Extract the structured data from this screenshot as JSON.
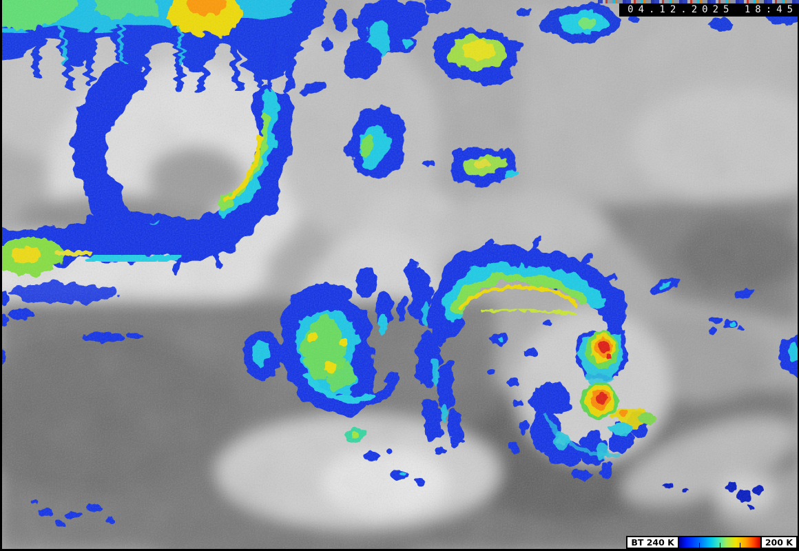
{
  "meta": {
    "description": "Color-enhanced infrared satellite image (brightness temperature enhancement over grayscale IR cloud imagery)"
  },
  "overlay": {
    "timestamp": "04.12.2025 18:45"
  },
  "legend": {
    "bt_min_label": "BT 240 K",
    "bt_max_label": "200 K",
    "gradient_stops": [
      "#000090 0%",
      "#0018ff 9%",
      "#0068ff 24%",
      "#00c4f2 38%",
      "#38e8c0 48%",
      "#a0ee58 58%",
      "#f0e400 70%",
      "#ffa400 82%",
      "#ff4400 92%",
      "#cc0000 100%"
    ],
    "tick_positions_pct": [
      25,
      50,
      75
    ]
  },
  "palette": {
    "enhancement_red": "#dc1400",
    "enhancement_orange": "#ff9000",
    "enhancement_yellow": "#f0dc00",
    "enhancement_green": "#78e048",
    "enhancement_cyan": "#18c8e8",
    "enhancement_blue": "#0a2ee8",
    "enhancement_dark_blue": "#0018c0",
    "ir_gray_dark": "#5c5c5c",
    "ir_gray_mid": "#ababab",
    "ir_gray_light": "#c8c8c8",
    "ir_cloud_white": "#ececec",
    "overlay_bg": "#000000",
    "overlay_text": "#f2f2f2"
  }
}
